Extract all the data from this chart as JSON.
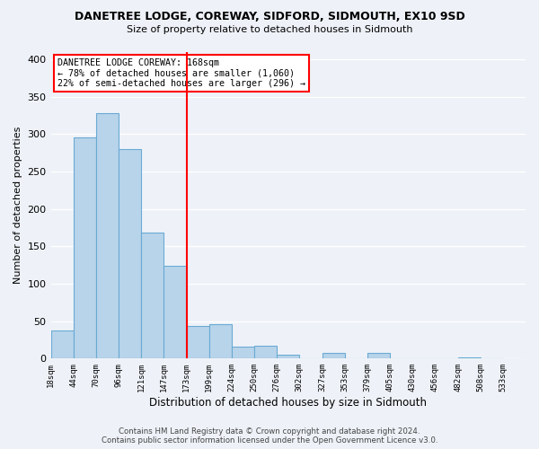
{
  "title": "DANETREE LODGE, COREWAY, SIDFORD, SIDMOUTH, EX10 9SD",
  "subtitle": "Size of property relative to detached houses in Sidmouth",
  "xlabel": "Distribution of detached houses by size in Sidmouth",
  "ylabel": "Number of detached properties",
  "bin_labels": [
    "18sqm",
    "44sqm",
    "70sqm",
    "96sqm",
    "121sqm",
    "147sqm",
    "173sqm",
    "199sqm",
    "224sqm",
    "250sqm",
    "276sqm",
    "302sqm",
    "327sqm",
    "353sqm",
    "379sqm",
    "405sqm",
    "430sqm",
    "456sqm",
    "482sqm",
    "508sqm",
    "533sqm"
  ],
  "bar_heights": [
    37,
    295,
    328,
    280,
    168,
    124,
    44,
    46,
    16,
    17,
    5,
    0,
    7,
    0,
    7,
    0,
    0,
    0,
    2,
    0
  ],
  "bar_color": "#b8d4ea",
  "bar_edge_color": "#6aaad4",
  "red_line_x": 6,
  "annotation_line1": "DANETREE LODGE COREWAY: 168sqm",
  "annotation_line2": "← 78% of detached houses are smaller (1,060)",
  "annotation_line3": "22% of semi-detached houses are larger (296) →",
  "ylim": [
    0,
    410
  ],
  "yticks": [
    0,
    50,
    100,
    150,
    200,
    250,
    300,
    350,
    400
  ],
  "footer_line1": "Contains HM Land Registry data © Crown copyright and database right 2024.",
  "footer_line2": "Contains public sector information licensed under the Open Government Licence v3.0.",
  "background_color": "#eef2f8"
}
